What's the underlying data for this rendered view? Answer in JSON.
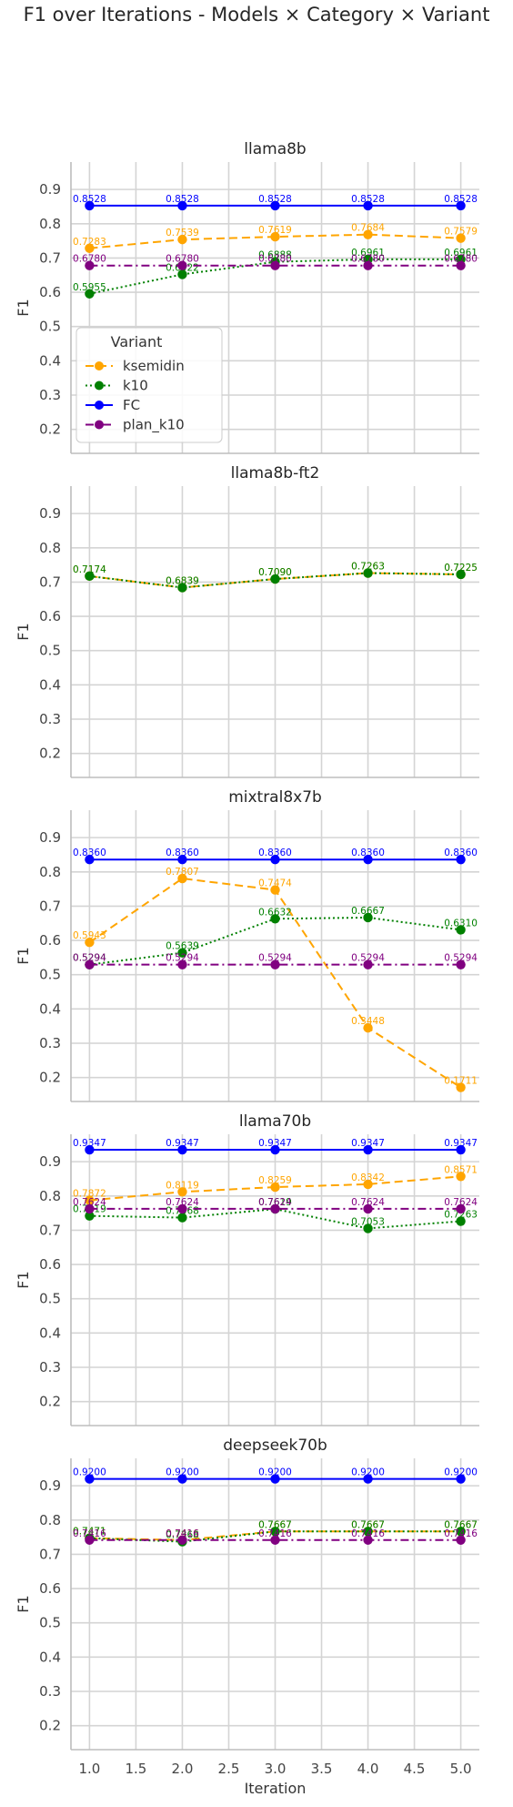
{
  "title": "F1 over Iterations - Models × Category × Variant",
  "xlabel": "Iteration",
  "ylabel": "F1",
  "legend": {
    "title": "Variant",
    "entries": [
      "ksemidin",
      "k10",
      "FC",
      "plan_k10"
    ],
    "placement": "upper-left of first panel"
  },
  "colors": {
    "ksemidin": "#ffa500",
    "k10": "#008000",
    "FC": "#0000ff",
    "plan_k10": "#800080"
  },
  "chart_data": {
    "type": "line",
    "shared_x": true,
    "x": [
      1.0,
      2.0,
      3.0,
      4.0,
      5.0
    ],
    "xticks": [
      "1.0",
      "1.5",
      "2.0",
      "2.5",
      "3.0",
      "3.5",
      "4.0",
      "4.5",
      "5.0"
    ],
    "xlim": [
      0.8,
      5.2
    ],
    "ylim": [
      0.13,
      0.98
    ],
    "yticks": [
      "0.2",
      "0.3",
      "0.4",
      "0.5",
      "0.6",
      "0.7",
      "0.8",
      "0.9"
    ],
    "grid": true,
    "panels": [
      {
        "title": "llama8b",
        "series": [
          {
            "name": "ksemidin",
            "values": [
              0.7283,
              0.7539,
              0.7619,
              0.7684,
              0.7579
            ],
            "labels": [
              "0.7283",
              "0.7539",
              "0.7619",
              "0.7684",
              "0.7579"
            ]
          },
          {
            "name": "k10",
            "values": [
              0.5955,
              0.6522,
              0.6888,
              0.6961,
              0.6961
            ],
            "labels": [
              "0.5955",
              "0.6522",
              "0.6888",
              "0.6961",
              "0.6961"
            ]
          },
          {
            "name": "FC",
            "values": [
              0.8528,
              0.8528,
              0.8528,
              0.8528,
              0.8528
            ],
            "labels": [
              "0.8528",
              "0.8528",
              "0.8528",
              "0.8528",
              "0.8528"
            ]
          },
          {
            "name": "plan_k10",
            "values": [
              0.678,
              0.678,
              0.678,
              0.678,
              0.678
            ],
            "labels": [
              "0.6780",
              "0.6780",
              "0.6780",
              "0.6780",
              "0.6780"
            ]
          }
        ]
      },
      {
        "title": "llama8b-ft2",
        "series": [
          {
            "name": "ksemidin",
            "values": [
              0.7174,
              0.6839,
              0.709,
              0.7263,
              0.7225
            ],
            "labels": [
              "0.7174",
              "0.6839",
              "0.7090",
              "0.7263",
              "0.7225"
            ]
          },
          {
            "name": "k10",
            "values": [
              0.7174,
              0.6839,
              0.709,
              0.7263,
              0.7225
            ],
            "labels": [
              "0.7174",
              "0.6839",
              "0.7090",
              "0.7263",
              "0.7225"
            ]
          }
        ]
      },
      {
        "title": "mixtral8x7b",
        "series": [
          {
            "name": "ksemidin",
            "values": [
              0.5943,
              0.7807,
              0.7474,
              0.3448,
              0.1711
            ],
            "labels": [
              "0.5943",
              "0.7807",
              "0.7474",
              "0.3448",
              "0.1711"
            ]
          },
          {
            "name": "k10",
            "values": [
              0.5294,
              0.5639,
              0.6632,
              0.6667,
              0.631
            ],
            "labels": [
              "0.5294",
              "0.5639",
              "0.6632",
              "0.6667",
              "0.6310"
            ]
          },
          {
            "name": "FC",
            "values": [
              0.836,
              0.836,
              0.836,
              0.836,
              0.836
            ],
            "labels": [
              "0.8360",
              "0.8360",
              "0.8360",
              "0.8360",
              "0.8360"
            ]
          },
          {
            "name": "plan_k10",
            "values": [
              0.5294,
              0.5294,
              0.5294,
              0.5294,
              0.5294
            ],
            "labels": [
              "0.5294",
              "0.5294",
              "0.5294",
              "0.5294",
              "0.5294"
            ]
          }
        ]
      },
      {
        "title": "llama70b",
        "series": [
          {
            "name": "ksemidin",
            "values": [
              0.7872,
              0.8119,
              0.8259,
              0.8342,
              0.8571
            ],
            "labels": [
              "0.7872",
              "0.8119",
              "0.8259",
              "0.8342",
              "0.8571"
            ]
          },
          {
            "name": "k10",
            "values": [
              0.7419,
              0.7368,
              0.7619,
              0.7053,
              0.7263
            ],
            "labels": [
              "0.7419",
              "0.7368",
              "0.7619",
              "0.7053",
              "0.7263"
            ]
          },
          {
            "name": "FC",
            "values": [
              0.9347,
              0.9347,
              0.9347,
              0.9347,
              0.9347
            ],
            "labels": [
              "0.9347",
              "0.9347",
              "0.9347",
              "0.9347",
              "0.9347"
            ]
          },
          {
            "name": "plan_k10",
            "values": [
              0.7624,
              0.7624,
              0.7624,
              0.7624,
              0.7624
            ],
            "labels": [
              "0.7624",
              "0.7624",
              "0.7624",
              "0.7624",
              "0.7624"
            ]
          }
        ]
      },
      {
        "title": "deepseek70b",
        "series": [
          {
            "name": "ksemidin",
            "values": [
              0.7471,
              0.7416,
              0.7667,
              0.7667,
              0.7667
            ],
            "labels": [
              "0.7471",
              "0.7416",
              "0.7667",
              "0.7667",
              "0.7667"
            ]
          },
          {
            "name": "k10",
            "values": [
              0.7471,
              0.7368,
              0.7667,
              0.7667,
              0.7667
            ],
            "labels": [
              "0.7471",
              "0.7368",
              "0.7667",
              "0.7667",
              "0.7667"
            ]
          },
          {
            "name": "FC",
            "values": [
              0.92,
              0.92,
              0.92,
              0.92,
              0.92
            ],
            "labels": [
              "0.9200",
              "0.9200",
              "0.9200",
              "0.9200",
              "0.9200"
            ]
          },
          {
            "name": "plan_k10",
            "values": [
              0.7416,
              0.7416,
              0.7416,
              0.7416,
              0.7416
            ],
            "labels": [
              "0.7416",
              "0.7416",
              "0.7416",
              "0.7416",
              "0.7416"
            ]
          }
        ]
      }
    ]
  }
}
